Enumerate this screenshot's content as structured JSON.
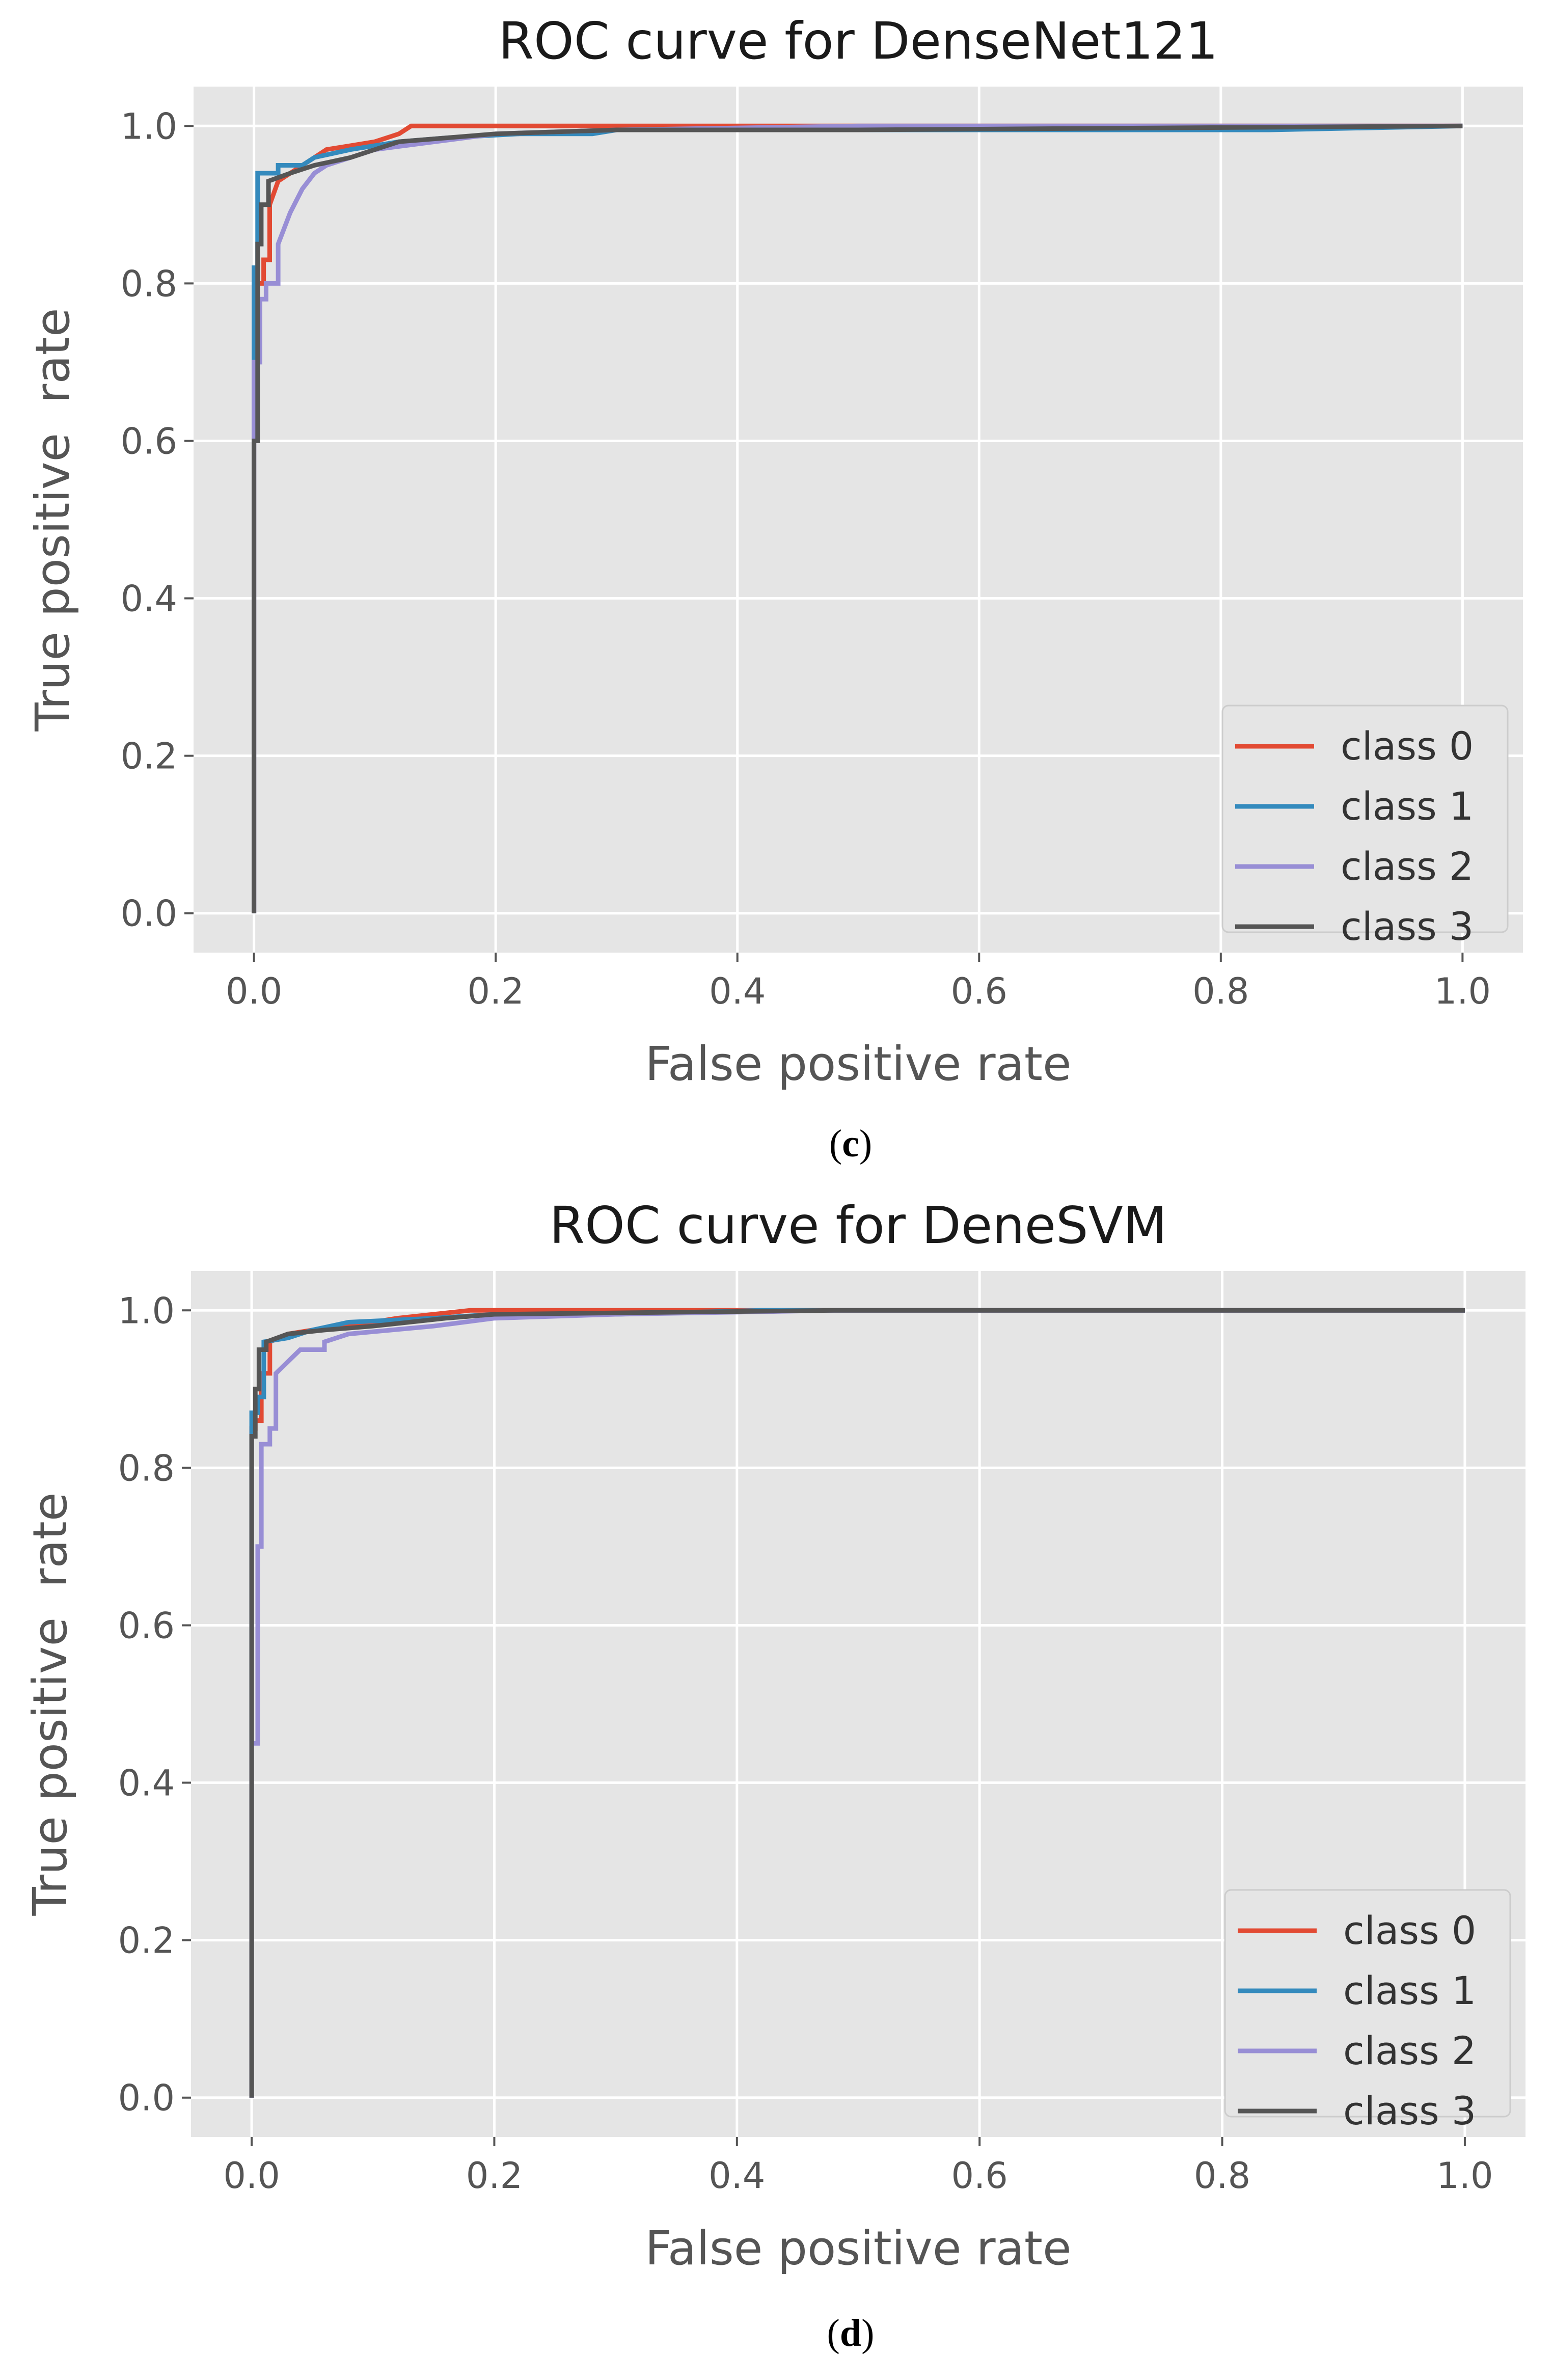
{
  "chart_data": [
    {
      "type": "line",
      "title": "ROC curve for DenseNet121",
      "xlabel": "False positive rate",
      "ylabel": "True positive  rate",
      "xlim": [
        -0.05,
        1.05
      ],
      "ylim": [
        -0.05,
        1.05
      ],
      "xticks": [
        "0.0",
        "0.2",
        "0.4",
        "0.6",
        "0.8",
        "1.0"
      ],
      "yticks": [
        "0.0",
        "0.2",
        "0.4",
        "0.6",
        "0.8",
        "1.0"
      ],
      "grid": true,
      "legend_position": "bottom-right",
      "caption": {
        "open": "(",
        "letter": "c",
        "close": ")"
      },
      "series": [
        {
          "name": "class 0",
          "color": "#e24a33",
          "x": [
            0,
            0,
            0.003,
            0.003,
            0.008,
            0.008,
            0.013,
            0.013,
            0.02,
            0.03,
            0.05,
            0.06,
            0.08,
            0.1,
            0.12,
            0.13,
            0.15,
            0.2,
            1.0
          ],
          "y": [
            0,
            0.7,
            0.7,
            0.8,
            0.8,
            0.83,
            0.83,
            0.9,
            0.93,
            0.94,
            0.96,
            0.97,
            0.975,
            0.98,
            0.99,
            1.0,
            1.0,
            1.0,
            1.0
          ]
        },
        {
          "name": "class 1",
          "color": "#348abd",
          "x": [
            0,
            0,
            0.003,
            0.003,
            0.02,
            0.02,
            0.04,
            0.05,
            0.08,
            0.12,
            0.16,
            0.22,
            0.28,
            0.3,
            0.5,
            0.84,
            1.0
          ],
          "y": [
            0,
            0.82,
            0.82,
            0.94,
            0.94,
            0.95,
            0.95,
            0.96,
            0.97,
            0.98,
            0.985,
            0.99,
            0.99,
            0.995,
            0.995,
            0.995,
            1.0
          ]
        },
        {
          "name": "class 2",
          "color": "#988ed5",
          "x": [
            0,
            0,
            0.005,
            0.005,
            0.01,
            0.01,
            0.02,
            0.02,
            0.03,
            0.04,
            0.05,
            0.06,
            0.08,
            0.1,
            0.15,
            0.2,
            0.3,
            0.5,
            1.0
          ],
          "y": [
            0,
            0.7,
            0.7,
            0.78,
            0.78,
            0.8,
            0.8,
            0.85,
            0.89,
            0.92,
            0.94,
            0.95,
            0.96,
            0.97,
            0.98,
            0.99,
            0.995,
            1.0,
            1.0
          ]
        },
        {
          "name": "class 3",
          "color": "#555555",
          "x": [
            0,
            0,
            0.003,
            0.003,
            0.006,
            0.006,
            0.012,
            0.012,
            0.03,
            0.05,
            0.08,
            0.1,
            0.12,
            0.16,
            0.2,
            0.3,
            0.5,
            1.0
          ],
          "y": [
            0,
            0.6,
            0.6,
            0.85,
            0.85,
            0.9,
            0.9,
            0.93,
            0.94,
            0.95,
            0.96,
            0.97,
            0.98,
            0.985,
            0.99,
            0.995,
            0.995,
            1.0
          ]
        }
      ]
    },
    {
      "type": "line",
      "title": "ROC curve for DeneSVM",
      "xlabel": "False positive rate",
      "ylabel": "True positive  rate",
      "xlim": [
        -0.05,
        1.05
      ],
      "ylim": [
        -0.05,
        1.05
      ],
      "xticks": [
        "0.0",
        "0.2",
        "0.4",
        "0.6",
        "0.8",
        "1.0"
      ],
      "yticks": [
        "0.0",
        "0.2",
        "0.4",
        "0.6",
        "0.8",
        "1.0"
      ],
      "grid": true,
      "legend_position": "bottom-right",
      "caption": {
        "open": "(",
        "letter": "d",
        "close": ")"
      },
      "series": [
        {
          "name": "class 0",
          "color": "#e24a33",
          "x": [
            0,
            0,
            0.003,
            0.003,
            0.008,
            0.008,
            0.015,
            0.015,
            0.03,
            0.05,
            0.08,
            0.12,
            0.18,
            0.28,
            1.0
          ],
          "y": [
            0,
            0.85,
            0.85,
            0.86,
            0.86,
            0.92,
            0.92,
            0.96,
            0.97,
            0.975,
            0.98,
            0.99,
            1.0,
            1.0,
            1.0
          ]
        },
        {
          "name": "class 1",
          "color": "#348abd",
          "x": [
            0,
            0,
            0.005,
            0.005,
            0.01,
            0.01,
            0.03,
            0.05,
            0.08,
            0.15,
            0.2,
            0.3,
            0.42,
            1.0
          ],
          "y": [
            0,
            0.87,
            0.87,
            0.89,
            0.89,
            0.96,
            0.965,
            0.975,
            0.985,
            0.99,
            0.995,
            0.995,
            1.0,
            1.0
          ]
        },
        {
          "name": "class 2",
          "color": "#988ed5",
          "x": [
            0,
            0,
            0.005,
            0.005,
            0.008,
            0.008,
            0.015,
            0.015,
            0.02,
            0.02,
            0.04,
            0.06,
            0.06,
            0.08,
            0.15,
            0.2,
            0.3,
            0.48,
            1.0
          ],
          "y": [
            0,
            0.45,
            0.45,
            0.7,
            0.7,
            0.83,
            0.83,
            0.85,
            0.85,
            0.92,
            0.95,
            0.95,
            0.96,
            0.97,
            0.98,
            0.99,
            0.995,
            1.0,
            1.0
          ]
        },
        {
          "name": "class 3",
          "color": "#555555",
          "x": [
            0,
            0,
            0.003,
            0.003,
            0.006,
            0.006,
            0.012,
            0.012,
            0.03,
            0.06,
            0.1,
            0.16,
            0.2,
            0.48,
            1.0
          ],
          "y": [
            0,
            0.84,
            0.84,
            0.9,
            0.9,
            0.95,
            0.95,
            0.96,
            0.97,
            0.975,
            0.98,
            0.99,
            0.995,
            1.0,
            1.0
          ]
        }
      ]
    }
  ]
}
